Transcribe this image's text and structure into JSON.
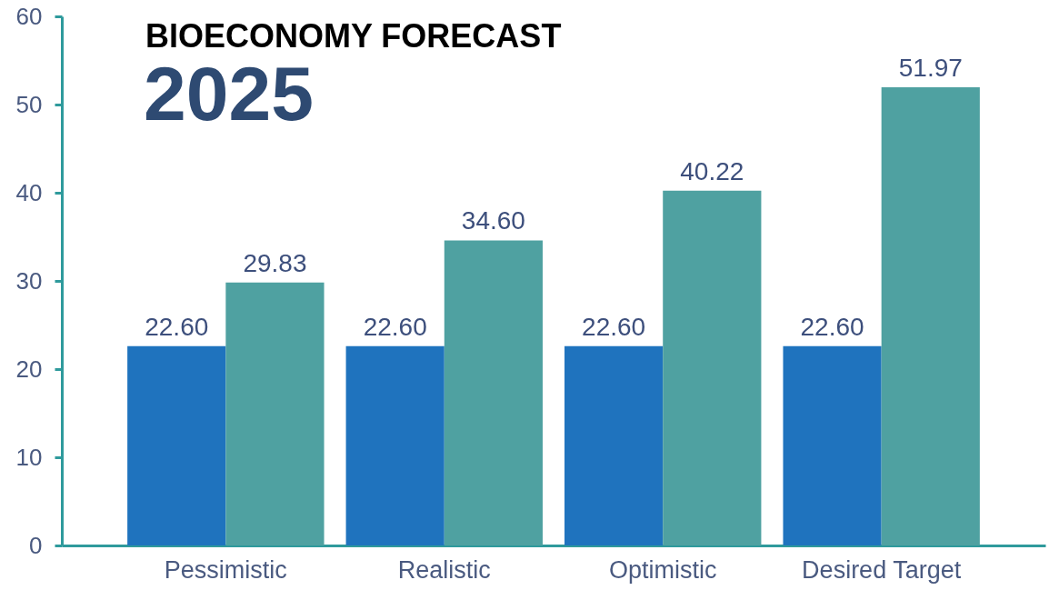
{
  "chart_data": {
    "type": "bar",
    "title": "BIOECONOMY FORECAST",
    "subtitle": "2025",
    "categories": [
      "Pessimistic",
      "Realistic",
      "Optimistic",
      "Desired Target"
    ],
    "series": [
      {
        "color": "#1f73be",
        "values": [
          22.6,
          22.6,
          22.6,
          22.6
        ],
        "value_labels": [
          "22.60",
          "22.60",
          "22.60",
          "22.60"
        ]
      },
      {
        "color": "#4fa1a1",
        "values": [
          29.83,
          34.6,
          40.22,
          51.97
        ],
        "value_labels": [
          "29.83",
          "34.60",
          "40.22",
          "51.97"
        ]
      }
    ],
    "ylim": [
      0,
      60
    ],
    "yticks": [
      0,
      10,
      20,
      30,
      40,
      50,
      60
    ],
    "grid": false
  }
}
